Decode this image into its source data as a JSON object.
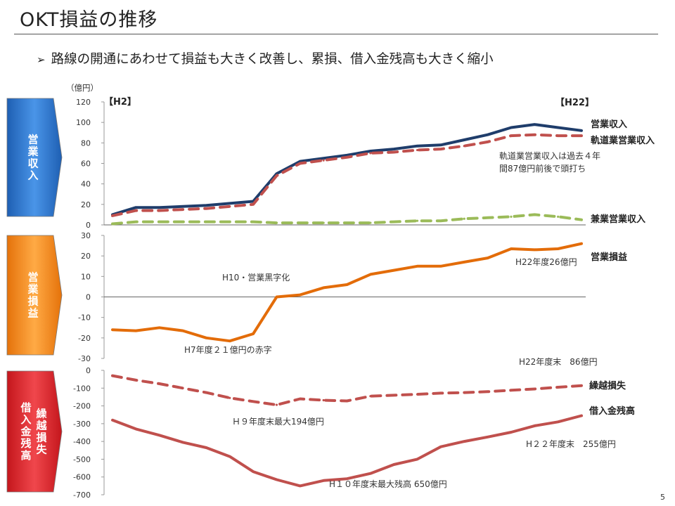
{
  "title": "OKT損益の推移",
  "bullet": "路線の開通にあわせて損益も大きく改善し、累損、借入金残高も大きく縮小",
  "page_number": "5",
  "side_labels": [
    {
      "text": "営業収入",
      "color": "#2a72c9"
    },
    {
      "text": "営業損益",
      "color": "#f28a1e"
    },
    {
      "text": "借入金残高・繰越損失",
      "cols": [
        "借入金残高",
        "繰越損失"
      ],
      "color": "#d9262b"
    }
  ],
  "chart_data": [
    {
      "type": "line",
      "unit_label": "（億円）",
      "ylim": [
        0,
        120
      ],
      "yticks": [
        "0",
        "20",
        "40",
        "60",
        "80",
        "100",
        "120"
      ],
      "x": [
        2,
        3,
        4,
        5,
        6,
        7,
        8,
        9,
        10,
        11,
        12,
        13,
        14,
        15,
        16,
        17,
        18,
        19,
        20,
        21,
        22
      ],
      "series": [
        {
          "name": "営業収入",
          "color": "#1f3d6b",
          "dash": "solid",
          "values": [
            10,
            17,
            17,
            18,
            19,
            21,
            23,
            50,
            62,
            65,
            68,
            72,
            74,
            77,
            78,
            83,
            88,
            95,
            98,
            95,
            92
          ]
        },
        {
          "name": "軌道業営業収入",
          "color": "#c0504d",
          "dash": "dashed",
          "values": [
            9,
            14,
            14,
            15,
            16,
            18,
            20,
            48,
            60,
            63,
            66,
            70,
            71,
            73,
            74,
            77,
            81,
            87,
            88,
            87,
            87
          ]
        },
        {
          "name": "兼業営業収入",
          "color": "#9bbb59",
          "dash": "dashed",
          "values": [
            1,
            3,
            3,
            3,
            3,
            3,
            3,
            2,
            2,
            2,
            2,
            2,
            3,
            4,
            4,
            6,
            7,
            8,
            10,
            8,
            5
          ]
        }
      ],
      "annotations": [
        "【H2】",
        "【H22】",
        "軌道業営業収入は過去４年",
        "間87億円前後で頭打ち"
      ]
    },
    {
      "type": "line",
      "ylim": [
        -30,
        30
      ],
      "yticks": [
        "-30",
        "-20",
        "-10",
        "0",
        "10",
        "20",
        "30"
      ],
      "x": [
        2,
        3,
        4,
        5,
        6,
        7,
        8,
        9,
        10,
        11,
        12,
        13,
        14,
        15,
        16,
        17,
        18,
        19,
        20,
        21,
        22
      ],
      "series": [
        {
          "name": "営業損益",
          "color": "#e36c09",
          "dash": "solid",
          "values": [
            -16,
            -16.5,
            -15,
            -16.5,
            -20,
            -21.5,
            -18,
            0,
            1,
            4.5,
            6,
            11,
            13,
            15,
            15,
            17,
            19,
            23.5,
            23,
            23.5,
            26
          ]
        }
      ],
      "annotations": [
        "H10・営業黒字化",
        "H7年度２１億円の赤字",
        "H22年度26億円"
      ]
    },
    {
      "type": "line",
      "ylim": [
        -700,
        0
      ],
      "yticks": [
        "-700",
        "-600",
        "-500",
        "-400",
        "-300",
        "-200",
        "-100",
        "0"
      ],
      "x": [
        2,
        3,
        4,
        5,
        6,
        7,
        8,
        9,
        10,
        11,
        12,
        13,
        14,
        15,
        16,
        17,
        18,
        19,
        20,
        21,
        22
      ],
      "series": [
        {
          "name": "繰越損失",
          "color": "#c0504d",
          "dash": "dashed",
          "values": [
            -30,
            -55,
            -75,
            -100,
            -125,
            -155,
            -175,
            -194,
            -160,
            -168,
            -172,
            -145,
            -140,
            -135,
            -128,
            -125,
            -120,
            -112,
            -105,
            -95,
            -86
          ]
        },
        {
          "name": "借入金残高",
          "color": "#c0504d",
          "dash": "solid",
          "values": [
            -280,
            -330,
            -365,
            -405,
            -435,
            -485,
            -570,
            -615,
            -650,
            -620,
            -610,
            -580,
            -530,
            -500,
            -430,
            -400,
            -375,
            -348,
            -312,
            -290,
            -255
          ]
        }
      ],
      "annotations": [
        "H22年度末　86億円",
        "Ｈ９年度末最大194億円",
        "H１０年度末最大残高 650億円",
        "H２２年度末　255億円"
      ]
    }
  ]
}
